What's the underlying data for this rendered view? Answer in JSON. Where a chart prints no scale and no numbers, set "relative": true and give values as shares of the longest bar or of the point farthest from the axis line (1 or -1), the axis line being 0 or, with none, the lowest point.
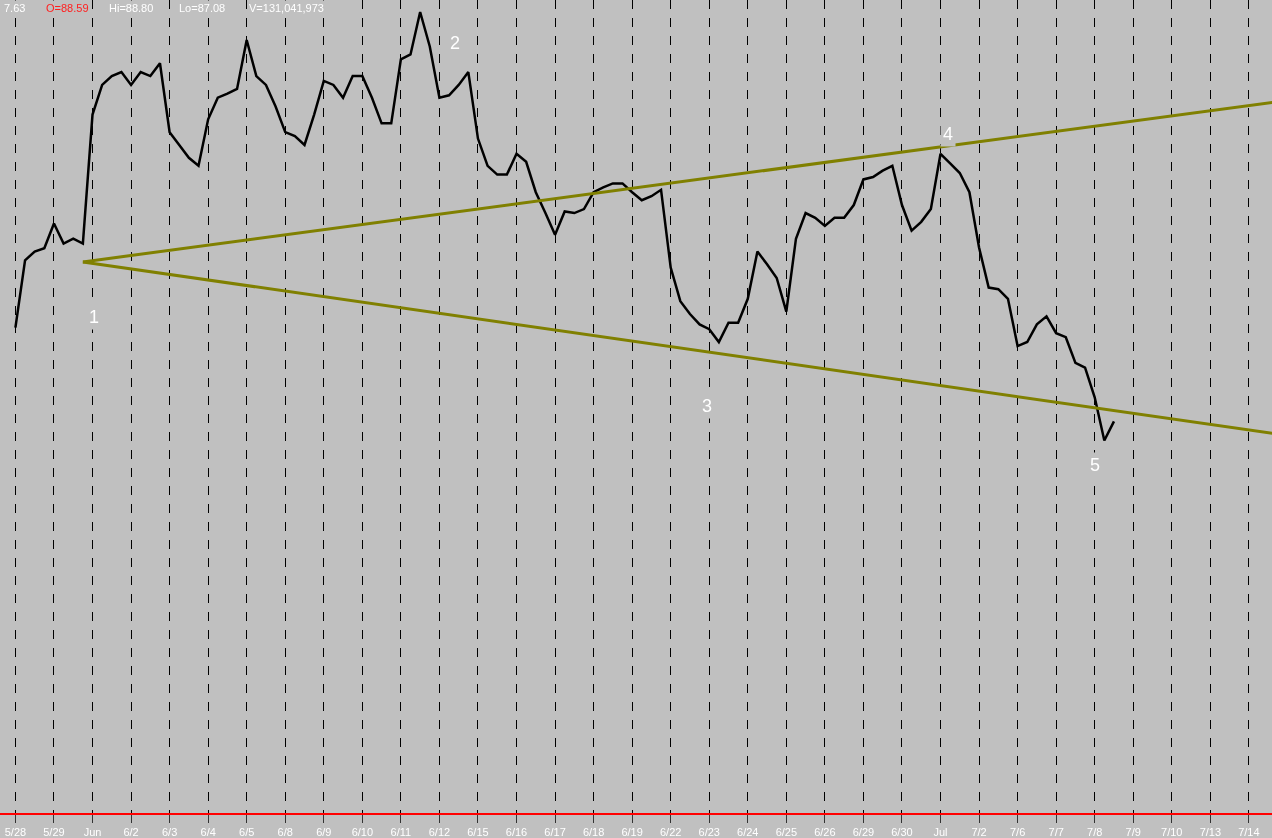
{
  "chart_data": {
    "type": "line",
    "relative": true,
    "grid": "x",
    "tick_labels": "x",
    "line_style": "solid",
    "marker": "none",
    "categories": [
      "5/28",
      null,
      null,
      null,
      "5/29",
      null,
      null,
      null,
      "Jun",
      null,
      null,
      null,
      "6/2",
      null,
      null,
      null,
      "6/3",
      null,
      null,
      null,
      "6/4",
      null,
      null,
      null,
      "6/5",
      null,
      null,
      null,
      "6/8",
      null,
      null,
      null,
      "6/9",
      null,
      null,
      null,
      "6/10",
      null,
      null,
      null,
      "6/11",
      null,
      null,
      null,
      "6/12",
      null,
      null,
      null,
      "6/15",
      null,
      null,
      null,
      "6/16",
      null,
      null,
      null,
      "6/17",
      null,
      null,
      null,
      "6/18",
      null,
      null,
      null,
      "6/19",
      null,
      null,
      null,
      "6/22",
      null,
      null,
      null,
      "6/23",
      null,
      null,
      null,
      "6/24",
      null,
      null,
      null,
      "6/25",
      null,
      null,
      null,
      "6/26",
      null,
      null,
      null,
      "6/29",
      null,
      null,
      null,
      "6/30",
      null,
      null,
      null,
      "Jul",
      null,
      null,
      null,
      "7/2",
      null,
      null,
      null,
      "7/6",
      null,
      null,
      null,
      "7/7",
      null,
      null,
      null,
      "7/8",
      null,
      null,
      null,
      "7/9",
      null,
      null,
      null,
      "7/10",
      null,
      null,
      null,
      "7/13",
      null,
      null,
      null,
      "7/14",
      null,
      null,
      null
    ],
    "annotations": [
      "7.63",
      "O=88.59",
      "Hi=88.80",
      "Lo=87.08",
      "V=131,041,973",
      "1",
      "2",
      "3",
      "4",
      "5"
    ],
    "series": [
      {
        "color": "#000000",
        "values": [
          0.606,
          0.69,
          0.701,
          0.705,
          0.736,
          0.711,
          0.717,
          0.711,
          0.872,
          0.909,
          0.92,
          0.925,
          0.909,
          0.925,
          0.92,
          0.936,
          0.85,
          0.834,
          0.818,
          0.808,
          0.866,
          0.893,
          0.898,
          0.904,
          0.965,
          0.92,
          0.909,
          0.882,
          0.85,
          0.845,
          0.834,
          0.872,
          0.914,
          0.909,
          0.893,
          0.92,
          0.92,
          0.893,
          0.861,
          0.861,
          0.941,
          0.947,
          1.0,
          0.957,
          0.893,
          0.896,
          0.909,
          0.925,
          0.842,
          0.808,
          0.797,
          0.797,
          0.823,
          0.813,
          0.775,
          0.749,
          0.722,
          0.751,
          0.749,
          0.754,
          0.775,
          0.781,
          0.786,
          0.786,
          0.775,
          0.765,
          0.77,
          0.778,
          0.681,
          0.639,
          0.623,
          0.61,
          0.604,
          0.588,
          0.612,
          0.612,
          0.642,
          0.701,
          0.685,
          0.668,
          0.626,
          0.717,
          0.749,
          0.743,
          0.733,
          0.743,
          0.743,
          0.759,
          0.791,
          0.794,
          0.802,
          0.808,
          0.759,
          0.727,
          0.738,
          0.754,
          0.823,
          0.811,
          0.799,
          0.775,
          0.706,
          0.656,
          0.654,
          0.642,
          0.583,
          0.588,
          0.61,
          0.62,
          0.599,
          0.594,
          0.562,
          0.556,
          0.519,
          0.465,
          0.489,
          null,
          null,
          null,
          null,
          null,
          null,
          null,
          null,
          null,
          null,
          null,
          null,
          null,
          null,
          null,
          null,
          null
        ]
      },
      {
        "color": "#808000",
        "values": [
          null,
          null,
          null,
          null,
          null,
          null,
          null,
          0.688,
          null,
          null,
          null,
          null,
          null,
          null,
          null,
          null,
          null,
          null,
          null,
          null,
          null,
          null,
          null,
          null,
          null,
          null,
          null,
          null,
          null,
          null,
          null,
          null,
          null,
          null,
          null,
          null,
          null,
          null,
          null,
          null,
          null,
          null,
          null,
          null,
          null,
          null,
          null,
          null,
          null,
          null,
          null,
          null,
          null,
          null,
          null,
          null,
          null,
          null,
          null,
          null,
          null,
          null,
          null,
          null,
          null,
          null,
          null,
          null,
          null,
          null,
          null,
          null,
          null,
          null,
          null,
          null,
          null,
          null,
          null,
          null,
          null,
          null,
          null,
          null,
          null,
          null,
          null,
          null,
          null,
          null,
          null,
          null,
          null,
          null,
          null,
          null,
          null,
          null,
          null,
          null,
          null,
          null,
          null,
          null,
          null,
          null,
          null,
          null,
          null,
          null,
          null,
          null,
          null,
          null,
          null,
          null,
          null,
          null,
          null,
          null,
          null,
          null,
          null,
          null,
          null,
          null,
          null,
          null,
          null,
          null,
          null,
          0.888
        ]
      },
      {
        "color": "#808000",
        "values": [
          null,
          null,
          null,
          null,
          null,
          null,
          null,
          0.688,
          null,
          null,
          null,
          null,
          null,
          null,
          null,
          null,
          null,
          null,
          null,
          null,
          null,
          null,
          null,
          null,
          null,
          null,
          null,
          null,
          null,
          null,
          null,
          null,
          null,
          null,
          null,
          null,
          null,
          null,
          null,
          null,
          null,
          null,
          null,
          null,
          null,
          null,
          null,
          null,
          null,
          null,
          null,
          null,
          null,
          null,
          null,
          null,
          null,
          null,
          null,
          null,
          null,
          null,
          null,
          null,
          null,
          null,
          null,
          null,
          null,
          null,
          null,
          null,
          null,
          null,
          null,
          null,
          null,
          null,
          null,
          null,
          null,
          null,
          null,
          null,
          null,
          null,
          null,
          null,
          null,
          null,
          null,
          null,
          null,
          null,
          null,
          null,
          null,
          null,
          null,
          null,
          null,
          null,
          null,
          null,
          null,
          null,
          null,
          null,
          null,
          null,
          null,
          null,
          null,
          null,
          null,
          null,
          null,
          null,
          null,
          null,
          null,
          null,
          null,
          null,
          null,
          null,
          null,
          null,
          null,
          null,
          null,
          0.473
        ]
      }
    ]
  }
}
